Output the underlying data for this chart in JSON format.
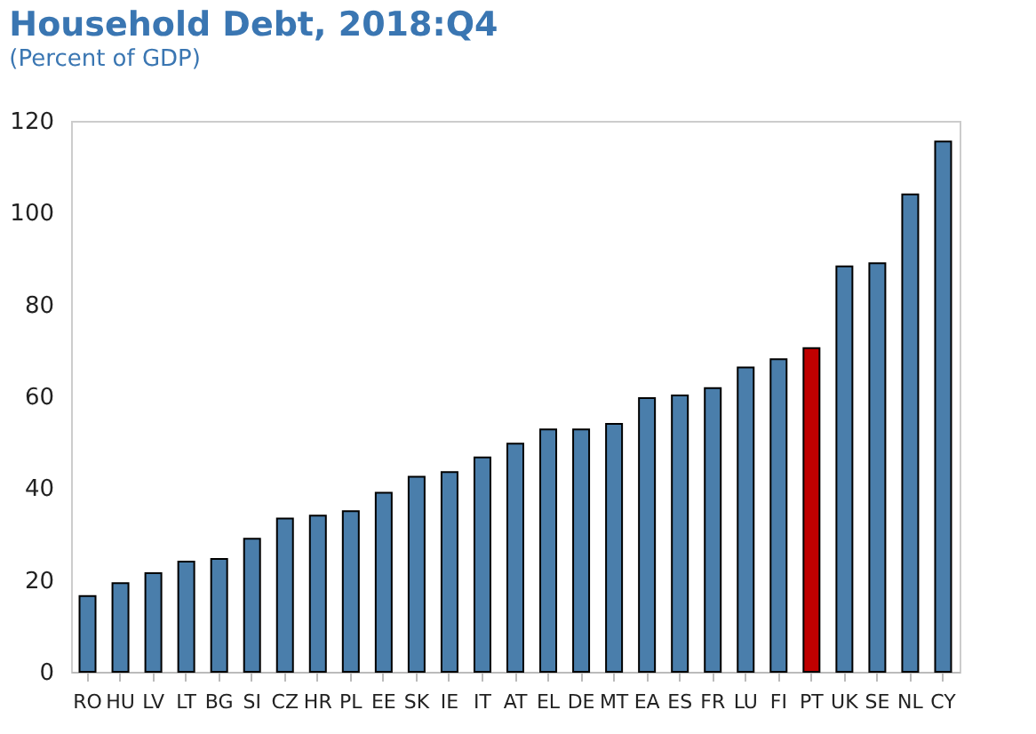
{
  "chart_data": {
    "type": "bar",
    "title": "Household Debt, 2018:Q4",
    "subtitle": "(Percent of GDP)",
    "categories": [
      "RO",
      "HU",
      "LV",
      "LT",
      "BG",
      "SI",
      "CZ",
      "HR",
      "PL",
      "EE",
      "SK",
      "IE",
      "IT",
      "AT",
      "EL",
      "DE",
      "MT",
      "EA",
      "ES",
      "FR",
      "LU",
      "FI",
      "PT",
      "UK",
      "SE",
      "NL",
      "CY"
    ],
    "values": [
      16.5,
      19.3,
      21.5,
      24,
      24.6,
      29,
      33.4,
      34,
      35,
      39,
      42.5,
      43.5,
      46.7,
      49.7,
      52.8,
      52.8,
      54,
      59.6,
      60.2,
      61.8,
      66.3,
      68.1,
      70.5,
      88.3,
      89,
      104,
      115.5
    ],
    "colors": [
      "#4a7eab",
      "#4a7eab",
      "#4a7eab",
      "#4a7eab",
      "#4a7eab",
      "#4a7eab",
      "#4a7eab",
      "#4a7eab",
      "#4a7eab",
      "#4a7eab",
      "#4a7eab",
      "#4a7eab",
      "#4a7eab",
      "#4a7eab",
      "#4a7eab",
      "#4a7eab",
      "#4a7eab",
      "#4a7eab",
      "#4a7eab",
      "#4a7eab",
      "#4a7eab",
      "#4a7eab",
      "#c00000",
      "#4a7eab",
      "#4a7eab",
      "#4a7eab",
      "#4a7eab"
    ],
    "ylim": [
      0,
      120
    ],
    "yticks": [
      0,
      20,
      40,
      60,
      80,
      100,
      120
    ],
    "grid": false
  }
}
